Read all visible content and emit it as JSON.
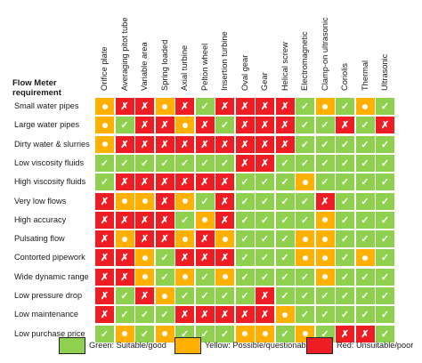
{
  "title": "Flow Meter requirement",
  "columns": [
    "Orifice plate",
    "Averaging pitot tube",
    "Variable area",
    "Spring loaded",
    "Axial turbine",
    "Pelton wheel",
    "Insertion turbine",
    "Oval gear",
    "Gear",
    "Helical screw",
    "Electromagnetic",
    "Clamp-on ultrasonic",
    "Coriolis",
    "Thermal",
    "Ultrasonic"
  ],
  "rows": [
    {
      "label": "Small water pipes",
      "cells": [
        "Y",
        "R",
        "R",
        "Y",
        "R",
        "G",
        "R",
        "R",
        "R",
        "R",
        "G",
        "Y",
        "G",
        "Y",
        "G"
      ]
    },
    {
      "label": "Large water pipes",
      "cells": [
        "Y",
        "G",
        "R",
        "R",
        "Y",
        "R",
        "G",
        "R",
        "R",
        "R",
        "G",
        "G",
        "R",
        "G",
        "R"
      ]
    },
    {
      "label": "Dirty water & slurries",
      "cells": [
        "Y",
        "R",
        "R",
        "R",
        "R",
        "R",
        "R",
        "R",
        "R",
        "R",
        "G",
        "G",
        "G",
        "G",
        "G"
      ]
    },
    {
      "label": "Low viscosity fluids",
      "cells": [
        "G",
        "G",
        "G",
        "G",
        "G",
        "G",
        "G",
        "R",
        "R",
        "G",
        "G",
        "G",
        "G",
        "G",
        "G"
      ]
    },
    {
      "label": "High viscosity fluids",
      "cells": [
        "G",
        "R",
        "R",
        "R",
        "R",
        "R",
        "R",
        "G",
        "G",
        "G",
        "Y",
        "G",
        "G",
        "G",
        "G"
      ]
    },
    {
      "label": "Very low flows",
      "cells": [
        "R",
        "Y",
        "Y",
        "R",
        "Y",
        "G",
        "R",
        "G",
        "G",
        "G",
        "G",
        "R",
        "G",
        "G",
        "G"
      ]
    },
    {
      "label": "High accuracy",
      "cells": [
        "R",
        "R",
        "R",
        "R",
        "G",
        "Y",
        "R",
        "G",
        "G",
        "G",
        "G",
        "Y",
        "G",
        "G",
        "G"
      ]
    },
    {
      "label": "Pulsating flow",
      "cells": [
        "R",
        "Y",
        "R",
        "R",
        "Y",
        "R",
        "Y",
        "G",
        "G",
        "G",
        "Y",
        "Y",
        "G",
        "G",
        "G"
      ]
    },
    {
      "label": "Contorted pipework",
      "cells": [
        "R",
        "R",
        "Y",
        "G",
        "R",
        "R",
        "R",
        "G",
        "G",
        "G",
        "Y",
        "Y",
        "G",
        "Y",
        "G"
      ]
    },
    {
      "label": "Wide dynamic range",
      "cells": [
        "R",
        "R",
        "Y",
        "G",
        "Y",
        "G",
        "Y",
        "G",
        "G",
        "G",
        "G",
        "Y",
        "G",
        "G",
        "G"
      ]
    },
    {
      "label": "Low pressure drop",
      "cells": [
        "R",
        "G",
        "R",
        "Y",
        "G",
        "G",
        "G",
        "G",
        "R",
        "G",
        "G",
        "G",
        "G",
        "G",
        "G"
      ]
    },
    {
      "label": "Low maintenance",
      "cells": [
        "R",
        "G",
        "G",
        "G",
        "R",
        "R",
        "R",
        "R",
        "R",
        "Y",
        "G",
        "G",
        "G",
        "G",
        "G"
      ]
    },
    {
      "label": "Low purchase price",
      "cells": [
        "G",
        "Y",
        "G",
        "Y",
        "G",
        "G",
        "G",
        "Y",
        "Y",
        "G",
        "Y",
        "G",
        "R",
        "R",
        "G"
      ]
    }
  ],
  "symbols": {
    "G": "✓",
    "R": "✗"
  },
  "legend": [
    {
      "key": "G",
      "label": "Green: Suitable/good",
      "color": "#8fd14f"
    },
    {
      "key": "Y",
      "label": "Yellow: Possible/questionable",
      "color": "#ffb000"
    },
    {
      "key": "R",
      "label": "Red: Unsuitable/poor",
      "color": "#ee1c23"
    }
  ]
}
